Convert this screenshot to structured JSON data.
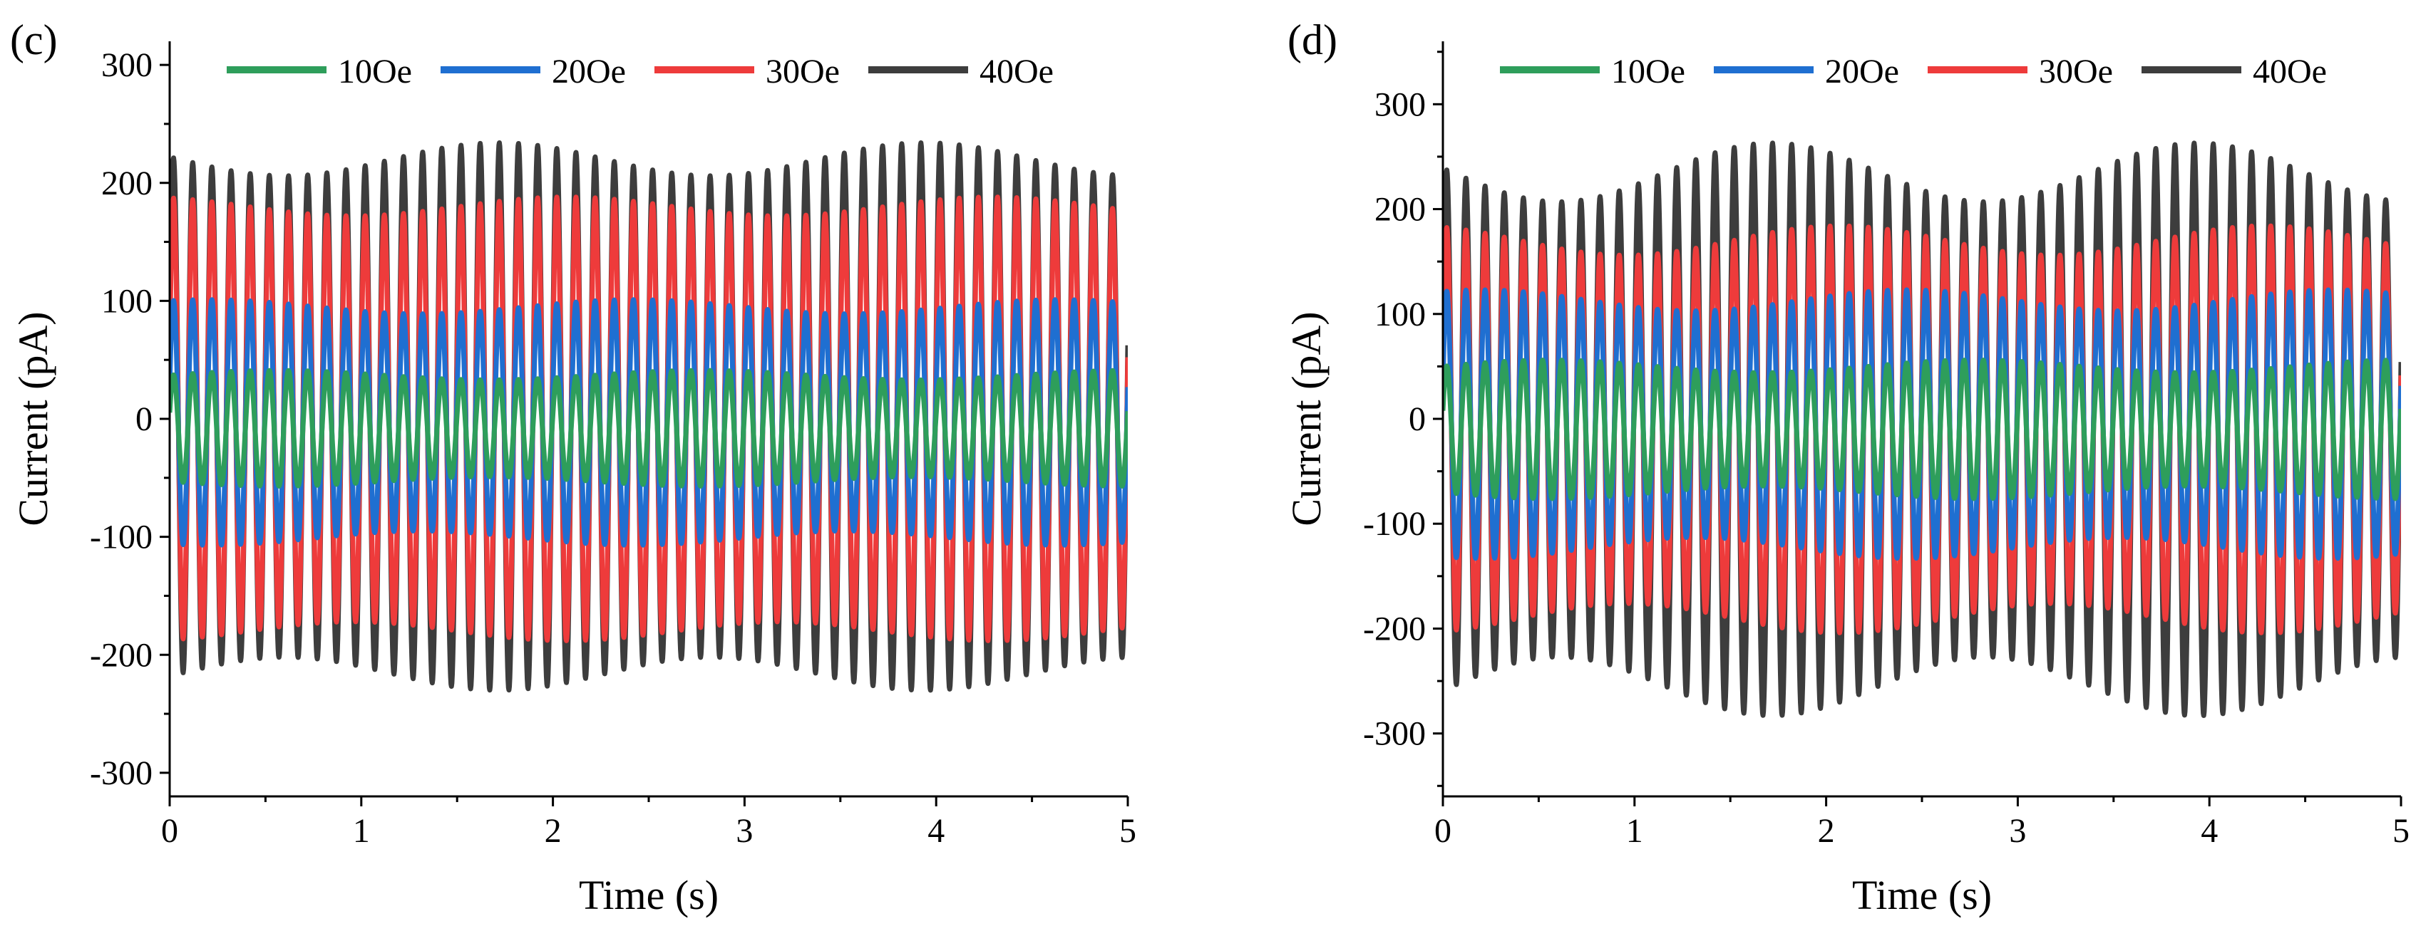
{
  "figure": {
    "legend_entries": [
      "10Oe",
      "20Oe",
      "30Oe",
      "40Oe"
    ]
  },
  "chart_data": [
    {
      "type": "line",
      "panel_label": "(c)",
      "xlabel": "Time (s)",
      "ylabel": "Current (pA)",
      "xlim": [
        0,
        5
      ],
      "ylim": [
        -320,
        320
      ],
      "xticks": [
        0,
        1,
        2,
        3,
        4,
        5
      ],
      "yticks": [
        -300,
        -200,
        -100,
        0,
        100,
        200,
        300
      ],
      "xtick_labels": [
        "0",
        "1",
        "2",
        "3",
        "4",
        "5"
      ],
      "ytick_labels": [
        "-300",
        "-200",
        "-100",
        "0",
        "100",
        "200",
        "300"
      ],
      "legend_position": "top",
      "grid": false,
      "signal_frequency_hz": 10,
      "series": [
        {
          "name": "10Oe",
          "color": "#2e9e5b",
          "amplitude_pA": 45,
          "offset_pA": -8,
          "modulation_pA": 4
        },
        {
          "name": "20Oe",
          "color": "#1f6fd1",
          "amplitude_pA": 98,
          "offset_pA": -3,
          "modulation_pA": 6
        },
        {
          "name": "30Oe",
          "color": "#ee3b3b",
          "amplitude_pA": 180,
          "offset_pA": 0,
          "modulation_pA": 8
        },
        {
          "name": "40Oe",
          "color": "#3d3d3d",
          "amplitude_pA": 218,
          "offset_pA": 2,
          "modulation_pA": 14
        }
      ]
    },
    {
      "type": "line",
      "panel_label": "(d)",
      "xlabel": "Time (s)",
      "ylabel": "Current (pA)",
      "xlim": [
        0,
        5
      ],
      "ylim": [
        -360,
        360
      ],
      "xticks": [
        0,
        1,
        2,
        3,
        4,
        5
      ],
      "yticks": [
        -300,
        -200,
        -100,
        0,
        100,
        200,
        300
      ],
      "xtick_labels": [
        "0",
        "1",
        "2",
        "3",
        "4",
        "5"
      ],
      "ytick_labels": [
        "-300",
        "-200",
        "-100",
        "0",
        "100",
        "200",
        "300"
      ],
      "legend_position": "top",
      "grid": false,
      "signal_frequency_hz": 10,
      "series": [
        {
          "name": "10Oe",
          "color": "#2e9e5b",
          "amplitude_pA": 60,
          "offset_pA": -10,
          "modulation_pA": 6
        },
        {
          "name": "20Oe",
          "color": "#1f6fd1",
          "amplitude_pA": 118,
          "offset_pA": -5,
          "modulation_pA": 10
        },
        {
          "name": "30Oe",
          "color": "#ee3b3b",
          "amplitude_pA": 180,
          "offset_pA": -10,
          "modulation_pA": 14
        },
        {
          "name": "40Oe",
          "color": "#3d3d3d",
          "amplitude_pA": 245,
          "offset_pA": -10,
          "modulation_pA": 28
        }
      ]
    }
  ]
}
